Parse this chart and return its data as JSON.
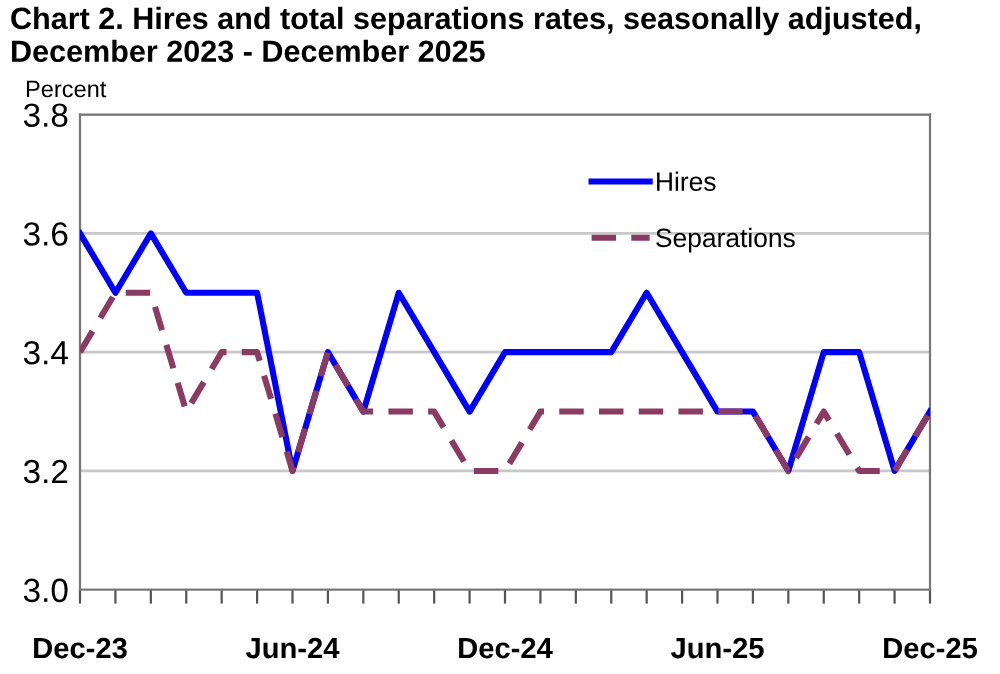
{
  "chart_data": {
    "type": "line",
    "title": "Chart 2. Hires and total separations rates, seasonally adjusted,\nDecember 2023 - December 2025",
    "ylabel": "Percent",
    "categories": [
      "Dec-23",
      null,
      null,
      null,
      null,
      null,
      "Jun-24",
      null,
      null,
      null,
      null,
      null,
      "Dec-24",
      null,
      null,
      null,
      null,
      null,
      "Jun-25",
      null,
      null,
      null,
      null,
      null,
      "Dec-25"
    ],
    "series": [
      {
        "name": "Hires",
        "color": "#0000ff",
        "line_style": "solid",
        "values": [
          3.6,
          3.5,
          3.6,
          3.5,
          3.5,
          3.5,
          3.2,
          3.4,
          3.3,
          3.5,
          3.4,
          3.3,
          3.4,
          3.4,
          3.4,
          3.4,
          3.5,
          3.4,
          3.3,
          3.3,
          3.2,
          3.4,
          3.4,
          3.2,
          3.3
        ]
      },
      {
        "name": "Separations",
        "color": "#8b3a62",
        "line_style": "dashed",
        "values": [
          3.4,
          3.5,
          3.5,
          3.3,
          3.4,
          3.4,
          3.2,
          3.4,
          3.3,
          3.3,
          3.3,
          3.2,
          3.2,
          3.3,
          3.3,
          3.3,
          3.3,
          3.3,
          3.3,
          3.3,
          3.2,
          3.3,
          3.2,
          3.2,
          3.3
        ]
      }
    ],
    "ylim": [
      3.0,
      3.8
    ],
    "yticks": [
      {
        "value": 3.0,
        "label": "3.0"
      },
      {
        "value": 3.2,
        "label": "3.2"
      },
      {
        "value": 3.4,
        "label": "3.4"
      },
      {
        "value": 3.6,
        "label": "3.6"
      },
      {
        "value": 3.8,
        "label": "3.8"
      }
    ],
    "grid": "y",
    "legend": "top right",
    "marker": "none"
  }
}
